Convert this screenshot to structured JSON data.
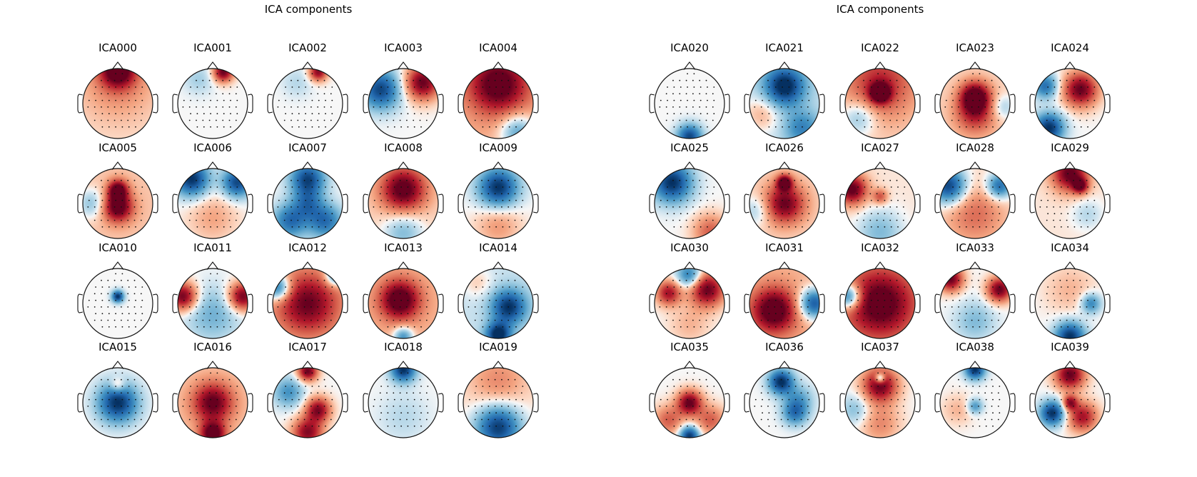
{
  "figure_title": "ICA components",
  "panels": [
    {
      "title": "ICA components",
      "components": [
        {
          "label": "ICA000",
          "blobs": [
            [
              0,
              -0.95,
              0.35,
              1
            ],
            [
              0,
              -0.6,
              0.8,
              0.3
            ]
          ],
          "base": 0.05
        },
        {
          "label": "ICA001",
          "blobs": [
            [
              0.3,
              -0.9,
              0.2,
              1
            ],
            [
              -0.4,
              -0.7,
              0.3,
              -0.2
            ]
          ],
          "base": 0
        },
        {
          "label": "ICA002",
          "blobs": [
            [
              0.3,
              -0.9,
              0.18,
              0.9
            ],
            [
              -0.3,
              -0.6,
              0.3,
              -0.15
            ]
          ],
          "base": 0
        },
        {
          "label": "ICA003",
          "blobs": [
            [
              -0.65,
              -0.4,
              0.4,
              -0.9
            ],
            [
              0.55,
              -0.6,
              0.35,
              1
            ]
          ],
          "base": 0
        },
        {
          "label": "ICA004",
          "blobs": [
            [
              0,
              -0.55,
              0.6,
              0.95
            ],
            [
              0.55,
              0.8,
              0.35,
              -0.6
            ]
          ],
          "base": 0.2
        },
        {
          "label": "ICA005",
          "blobs": [
            [
              0,
              0.1,
              0.3,
              1
            ],
            [
              0,
              -0.4,
              0.2,
              0.9
            ],
            [
              -0.75,
              0,
              0.3,
              -0.4
            ]
          ],
          "base": 0.15
        },
        {
          "label": "ICA006",
          "blobs": [
            [
              -0.6,
              -0.7,
              0.35,
              -1
            ],
            [
              0.7,
              -0.6,
              0.3,
              -0.9
            ],
            [
              0,
              0.4,
              0.5,
              0.25
            ]
          ],
          "base": 0
        },
        {
          "label": "ICA007",
          "blobs": [
            [
              0,
              -0.7,
              0.35,
              -0.9
            ],
            [
              -0.5,
              0.5,
              0.35,
              -0.7
            ],
            [
              0.5,
              0.5,
              0.35,
              -0.7
            ],
            [
              0,
              0,
              0.3,
              -0.5
            ]
          ],
          "base": 0
        },
        {
          "label": "ICA008",
          "blobs": [
            [
              0,
              -0.4,
              0.45,
              1
            ],
            [
              0,
              0.8,
              0.4,
              -0.4
            ]
          ],
          "base": 0.1
        },
        {
          "label": "ICA009",
          "blobs": [
            [
              0,
              -0.45,
              0.4,
              -1
            ],
            [
              0,
              0.6,
              0.45,
              0.3
            ]
          ],
          "base": 0
        },
        {
          "label": "ICA010",
          "blobs": [
            [
              0,
              -0.2,
              0.12,
              -1
            ]
          ],
          "base": 0
        },
        {
          "label": "ICA011",
          "blobs": [
            [
              -0.85,
              -0.2,
              0.28,
              1
            ],
            [
              0.85,
              -0.2,
              0.28,
              1
            ],
            [
              0,
              0.3,
              0.55,
              -0.35
            ]
          ],
          "base": 0
        },
        {
          "label": "ICA012",
          "blobs": [
            [
              0,
              0,
              0.65,
              0.9
            ],
            [
              -0.85,
              -0.45,
              0.25,
              -0.9
            ],
            [
              0.8,
              -0.8,
              0.2,
              -0.8
            ]
          ],
          "base": 0.1
        },
        {
          "label": "ICA013",
          "blobs": [
            [
              -0.1,
              -0.1,
              0.4,
              1
            ],
            [
              0,
              0.95,
              0.2,
              -0.7
            ]
          ],
          "base": 0.2
        },
        {
          "label": "ICA014",
          "blobs": [
            [
              0.3,
              0.1,
              0.35,
              -0.9
            ],
            [
              0,
              0.9,
              0.25,
              -1
            ],
            [
              -0.6,
              -0.6,
              0.3,
              0.2
            ]
          ],
          "base": -0.1
        },
        {
          "label": "ICA015",
          "blobs": [
            [
              0,
              0,
              0.4,
              -1
            ],
            [
              0,
              -0.5,
              0.15,
              0.4
            ]
          ],
          "base": 0
        },
        {
          "label": "ICA016",
          "blobs": [
            [
              0,
              0,
              0.4,
              0.9
            ],
            [
              0,
              0.9,
              0.25,
              1
            ]
          ],
          "base": 0.15
        },
        {
          "label": "ICA017",
          "blobs": [
            [
              0,
              -0.9,
              0.2,
              1
            ],
            [
              0.3,
              0.2,
              0.25,
              0.9
            ],
            [
              0,
              0.85,
              0.3,
              0.9
            ],
            [
              -0.55,
              -0.3,
              0.3,
              -0.5
            ]
          ],
          "base": 0
        },
        {
          "label": "ICA018",
          "blobs": [
            [
              0,
              -0.95,
              0.25,
              -1
            ],
            [
              0,
              0.4,
              0.5,
              -0.15
            ]
          ],
          "base": 0
        },
        {
          "label": "ICA019",
          "blobs": [
            [
              0,
              0.7,
              0.45,
              -1
            ],
            [
              0,
              -0.6,
              0.55,
              0.3
            ]
          ],
          "base": 0.05
        },
        {
          "label": "ICA020",
          "blobs": [
            [
              0,
              0.95,
              0.25,
              -0.9
            ]
          ],
          "base": 0
        },
        {
          "label": "ICA021",
          "blobs": [
            [
              0,
              -0.5,
              0.4,
              -1
            ],
            [
              -0.65,
              0.3,
              0.35,
              0.3
            ],
            [
              0.5,
              0.7,
              0.35,
              -0.5
            ]
          ],
          "base": -0.1
        },
        {
          "label": "ICA022",
          "blobs": [
            [
              0,
              -0.3,
              0.2,
              1
            ],
            [
              0,
              -0.6,
              0.7,
              0.6
            ],
            [
              -0.6,
              0.4,
              0.35,
              -0.4
            ]
          ],
          "base": 0.1
        },
        {
          "label": "ICA023",
          "blobs": [
            [
              0,
              -0.2,
              0.3,
              1
            ],
            [
              0,
              0.3,
              0.4,
              0.6
            ],
            [
              0.8,
              0.1,
              0.25,
              -0.3
            ]
          ],
          "base": 0.1
        },
        {
          "label": "ICA024",
          "blobs": [
            [
              0.3,
              -0.4,
              0.35,
              1
            ],
            [
              -0.6,
              0.7,
              0.3,
              -1
            ],
            [
              -0.7,
              -0.5,
              0.25,
              -0.7
            ]
          ],
          "base": 0
        },
        {
          "label": "ICA025",
          "blobs": [
            [
              -0.5,
              -0.6,
              0.4,
              -1
            ],
            [
              0.6,
              0.8,
              0.35,
              0.5
            ]
          ],
          "base": 0
        },
        {
          "label": "ICA026",
          "blobs": [
            [
              0,
              0,
              0.4,
              0.9
            ],
            [
              0,
              -0.6,
              0.15,
              1
            ],
            [
              -0.8,
              0.2,
              0.3,
              -0.3
            ]
          ],
          "base": 0.1
        },
        {
          "label": "ICA027",
          "blobs": [
            [
              -0.8,
              -0.4,
              0.3,
              1
            ],
            [
              0,
              -0.2,
              0.15,
              0.5
            ],
            [
              0,
              0.8,
              0.45,
              -0.35
            ]
          ],
          "base": 0.05
        },
        {
          "label": "ICA028",
          "blobs": [
            [
              -0.75,
              -0.5,
              0.35,
              -1
            ],
            [
              0.7,
              -0.5,
              0.25,
              -0.8
            ],
            [
              0,
              0.3,
              0.6,
              0.4
            ]
          ],
          "base": 0.05
        },
        {
          "label": "ICA029",
          "blobs": [
            [
              0,
              -0.85,
              0.35,
              1
            ],
            [
              0.3,
              -0.5,
              0.15,
              0.8
            ],
            [
              0.5,
              0.3,
              0.3,
              -0.2
            ]
          ],
          "base": 0.05
        },
        {
          "label": "ICA030",
          "blobs": [
            [
              0.5,
              -0.4,
              0.35,
              1
            ],
            [
              -0.6,
              -0.3,
              0.25,
              0.8
            ],
            [
              0,
              -0.8,
              0.25,
              -0.7
            ],
            [
              0,
              0.6,
              0.4,
              0.2
            ]
          ],
          "base": 0
        },
        {
          "label": "ICA031",
          "blobs": [
            [
              -0.3,
              0.2,
              0.45,
              1
            ],
            [
              0.85,
              0,
              0.3,
              -1
            ]
          ],
          "base": 0.2
        },
        {
          "label": "ICA032",
          "blobs": [
            [
              0,
              0,
              0.7,
              0.95
            ],
            [
              -0.9,
              -0.2,
              0.25,
              -1
            ]
          ],
          "base": 0.2
        },
        {
          "label": "ICA033",
          "blobs": [
            [
              -0.7,
              -0.7,
              0.25,
              1
            ],
            [
              0.7,
              -0.4,
              0.25,
              1
            ],
            [
              0,
              0.5,
              0.4,
              -0.3
            ]
          ],
          "base": 0
        },
        {
          "label": "ICA034",
          "blobs": [
            [
              0,
              0.95,
              0.3,
              -1
            ],
            [
              0.6,
              0,
              0.2,
              -0.6
            ],
            [
              0,
              -0.4,
              0.5,
              0.2
            ]
          ],
          "base": 0
        },
        {
          "label": "ICA035",
          "blobs": [
            [
              0,
              0,
              0.25,
              1
            ],
            [
              0,
              0.95,
              0.2,
              -1
            ],
            [
              -0.6,
              0.5,
              0.3,
              0.5
            ],
            [
              0.6,
              0.5,
              0.3,
              0.5
            ]
          ],
          "base": 0
        },
        {
          "label": "ICA036",
          "blobs": [
            [
              -0.1,
              -0.6,
              0.25,
              -1
            ],
            [
              0.3,
              0.3,
              0.25,
              -0.6
            ],
            [
              0.4,
              -0.1,
              0.3,
              -0.4
            ]
          ],
          "base": 0
        },
        {
          "label": "ICA037",
          "blobs": [
            [
              0,
              -0.5,
              0.35,
              1
            ],
            [
              0,
              -0.7,
              0.1,
              -0.8
            ],
            [
              0,
              0.6,
              0.4,
              0.35
            ],
            [
              -0.7,
              0.2,
              0.3,
              -0.3
            ]
          ],
          "base": 0
        },
        {
          "label": "ICA038",
          "blobs": [
            [
              0,
              -0.95,
              0.2,
              -1
            ],
            [
              0,
              0.1,
              0.15,
              -0.5
            ],
            [
              -0.5,
              0.2,
              0.3,
              0.2
            ]
          ],
          "base": 0
        },
        {
          "label": "ICA039",
          "blobs": [
            [
              0,
              -0.8,
              0.3,
              1
            ],
            [
              -0.5,
              0.3,
              0.25,
              -1
            ],
            [
              0.35,
              0.4,
              0.3,
              0.8
            ],
            [
              0,
              0,
              0.15,
              0.8
            ]
          ],
          "base": 0
        }
      ]
    }
  ]
}
